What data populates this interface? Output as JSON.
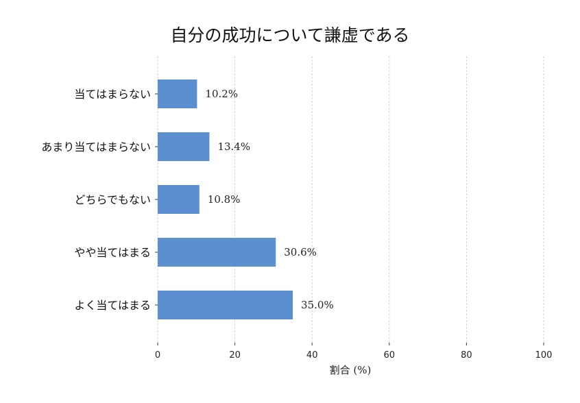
{
  "chart_data": {
    "type": "bar",
    "orientation": "horizontal",
    "title": "自分の成功について謙虚である",
    "xlabel": "割合 (%)",
    "ylabel": "",
    "xlim": [
      0,
      100
    ],
    "xticks": [
      "0",
      "20",
      "40",
      "60",
      "80",
      "100"
    ],
    "categories": [
      "当てはまらない",
      "あまり当てはまらない",
      "どちらでもない",
      "やや当てはまる",
      "よく当てはまる"
    ],
    "values": [
      10.2,
      13.4,
      10.8,
      30.6,
      35.0
    ],
    "data_labels": [
      "10.2%",
      "13.4%",
      "10.8%",
      "30.6%",
      "35.0%"
    ],
    "grid": "vertical dashed",
    "bar_color": "#5b8fd0"
  }
}
